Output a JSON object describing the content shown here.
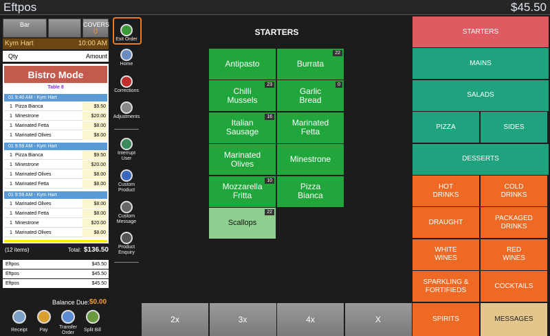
{
  "title_bar": {
    "app": "Eftpos",
    "amount": "$45.50"
  },
  "order_header": {
    "location": "Bar",
    "covers_label": "COVERS",
    "covers": "0",
    "staff": "Kym Hart",
    "time": "10:00 AM",
    "qty_label": "Qty",
    "amount_label": "Amount"
  },
  "order": {
    "mode": "Bistro Mode",
    "table": "Table 8",
    "groups": [
      {
        "header": "01 9:40 AM - Kym Hart",
        "items": [
          {
            "qty": "1",
            "name": "Pizza Bianca",
            "price": "$9.50"
          },
          {
            "qty": "1",
            "name": "Minestrone",
            "price": "$20.00"
          },
          {
            "qty": "1",
            "name": "Marinated Fetta",
            "price": "$8.00"
          },
          {
            "qty": "1",
            "name": "Marinated Olives",
            "price": "$8.00"
          }
        ]
      },
      {
        "header": "01 9:59 AM - Kym Hart",
        "items": [
          {
            "qty": "1",
            "name": "Pizza Bianca",
            "price": "$9.50"
          },
          {
            "qty": "1",
            "name": "Minestrone",
            "price": "$20.00"
          },
          {
            "qty": "1",
            "name": "Marinated Olives",
            "price": "$8.00"
          },
          {
            "qty": "1",
            "name": "Marinated Fetta",
            "price": "$8.00"
          }
        ]
      },
      {
        "header": "01 9:59 AM - Kym Hart",
        "items": [
          {
            "qty": "1",
            "name": "Marinated Olives",
            "price": "$8.00"
          },
          {
            "qty": "1",
            "name": "Marinated Fetta",
            "price": "$8.00"
          },
          {
            "qty": "1",
            "name": "Minestrone",
            "price": "$20.00"
          },
          {
            "qty": "1",
            "name": "Marinated Olives",
            "price": "$8.00"
          }
        ]
      }
    ]
  },
  "totals": {
    "count": "(12 items)",
    "label": "Total:",
    "total": "$136.50"
  },
  "payments": [
    {
      "method": "Eftpos",
      "amount": "$45.50"
    },
    {
      "method": "Eftpos",
      "amount": "$45.50"
    },
    {
      "method": "Eftpos",
      "amount": "$45.50"
    }
  ],
  "balance": {
    "label": "Balance Due:",
    "amount": "$0.00"
  },
  "bottom_actions": [
    "Receipt",
    "Pay",
    "Transfer\nOrder",
    "Split Bill"
  ],
  "side_tools": [
    "Exit Order",
    "Home",
    "Corrections",
    "Adjustments",
    "Interrupt\nUser",
    "Custom\nProduct",
    "Custom\nMessage",
    "Product\nEnquiry"
  ],
  "menu": {
    "title": "STARTERS",
    "products": [
      {
        "name": "Antipasto"
      },
      {
        "name": "Burrata",
        "count": 22
      },
      {
        "name": "Chilli\nMussels",
        "count": 23
      },
      {
        "name": "Garlic\nBread",
        "count": 0
      },
      {
        "name": "Italian\nSausage",
        "count": 16
      },
      {
        "name": "Marinated\nFetta"
      },
      {
        "name": "Marinated\nOlives"
      },
      {
        "name": "Minestrone"
      },
      {
        "name": "Mozzarella\nFritta",
        "count": 10
      },
      {
        "name": "Pizza\nBianca"
      },
      {
        "name": "Scallops",
        "count": 22
      }
    ]
  },
  "quantity_buttons": [
    "2x",
    "3x",
    "4x",
    "X"
  ],
  "categories": [
    [
      {
        "name": "STARTERS",
        "color": "#e05a61"
      }
    ],
    [
      {
        "name": "MAINS",
        "color": "#1fa37f"
      }
    ],
    [
      {
        "name": "SALADS",
        "color": "#1fa37f"
      }
    ],
    [
      {
        "name": "PIZZA",
        "color": "#1fa37f"
      },
      {
        "name": "SIDES",
        "color": "#1fa37f"
      }
    ],
    [
      {
        "name": "DESSERTS",
        "color": "#1fa37f"
      }
    ],
    [
      {
        "name": "HOT\nDRINKS",
        "color": "#ee6a24"
      },
      {
        "name": "COLD\nDRINKS",
        "color": "#ee6a24"
      }
    ],
    [
      {
        "name": "DRAUGHT",
        "color": "#ee6a24"
      },
      {
        "name": "PACKAGED\nDRINKS",
        "color": "#ee6a24"
      }
    ],
    [
      {
        "name": "WHITE\nWINES",
        "color": "#ee6a24"
      },
      {
        "name": "RED\nWINES",
        "color": "#ee6a24"
      }
    ],
    [
      {
        "name": "SPARKLING &\nFORTIFIEDS",
        "color": "#ee6a24"
      },
      {
        "name": "COCKTAILS",
        "color": "#ee6a24"
      }
    ],
    [
      {
        "name": "SPIRITS",
        "color": "#ee6a24"
      },
      {
        "name": "MESSAGES",
        "color": "#e4c68c"
      }
    ]
  ]
}
